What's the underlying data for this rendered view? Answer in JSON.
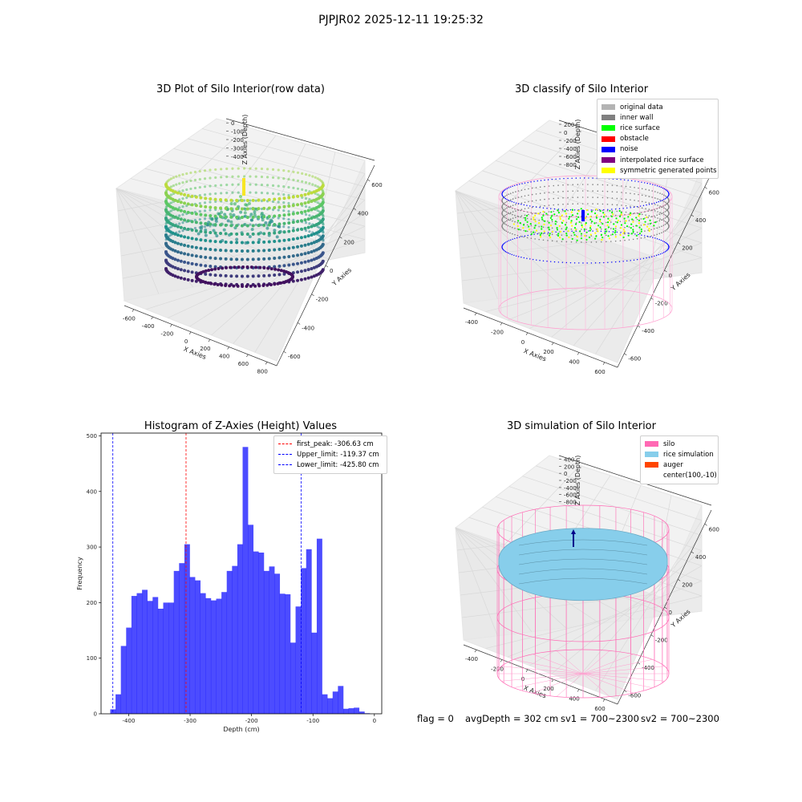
{
  "suptitle": "PJPJR02 2025-12-11 19:25:32",
  "panels": {
    "raw": {
      "title": "3D Plot of Silo Interior(row data)",
      "xlabel": "X Axies",
      "ylabel": "Y Axies",
      "zlabel": "Z Axies (Depth)",
      "xticks": [
        "-600",
        "-400",
        "-200",
        "0",
        "200",
        "400",
        "600",
        "800"
      ],
      "yticks": [
        "-600",
        "-400",
        "-200",
        "0",
        "200",
        "400",
        "600"
      ],
      "zticks": [
        "0",
        "-100",
        "-200",
        "-300",
        "-400"
      ]
    },
    "classify": {
      "title": "3D classify of Silo Interior",
      "xlabel": "X Axies",
      "ylabel": "Y Axies",
      "zlabel": "Z Axies (Depth)",
      "xticks": [
        "-400",
        "-200",
        "0",
        "200",
        "400",
        "600"
      ],
      "yticks": [
        "-600",
        "-400",
        "-200",
        "0",
        "200",
        "400",
        "600"
      ],
      "zticks": [
        "200",
        "0",
        "-200",
        "-400",
        "-600",
        "-800"
      ],
      "legend": [
        {
          "label": "original data",
          "color": "#b3b3b3"
        },
        {
          "label": "inner wall",
          "color": "#808080"
        },
        {
          "label": "rice surface",
          "color": "#00ff00"
        },
        {
          "label": "obstacle",
          "color": "#ff0000"
        },
        {
          "label": "noise",
          "color": "#0000ff"
        },
        {
          "label": "interpolated rice surface",
          "color": "#800080"
        },
        {
          "label": "symmetric generated points",
          "color": "#ffff00"
        }
      ]
    },
    "simulation": {
      "title": "3D simulation of Silo Interior",
      "xlabel": "X Axies",
      "ylabel": "Y Axies",
      "zlabel": "Z Axies (Depth)",
      "xticks": [
        "-400",
        "-200",
        "0",
        "200",
        "400",
        "600"
      ],
      "yticks": [
        "-600",
        "-400",
        "-200",
        "0",
        "200",
        "400",
        "600"
      ],
      "zticks": [
        "400",
        "200",
        "0",
        "-200",
        "-400",
        "-600",
        "-800"
      ],
      "legend": [
        {
          "label": "silo",
          "color": "#ff69b4"
        },
        {
          "label": "rice simulation",
          "color": "#87ceeb"
        },
        {
          "label": "auger",
          "color": "#ff4500"
        },
        {
          "label": "center(100,-10)",
          "color": ""
        }
      ]
    }
  },
  "footer": {
    "flag": "flag = 0",
    "avg": "avgDepth = 302 cm",
    "sv1": "sv1 = 700~2300",
    "sv2": "sv2 = 700~2300"
  },
  "chart_data": {
    "type": "bar",
    "title": "Histogram of Z-Axies (Height) Values",
    "xlabel": "Depth (cm)",
    "ylabel": "Frequency",
    "xlim": [
      -445,
      12
    ],
    "ylim": [
      0,
      505
    ],
    "xticks": [
      -400,
      -300,
      -200,
      -100,
      0
    ],
    "yticks": [
      0,
      100,
      200,
      300,
      400,
      500
    ],
    "bin_start": -430,
    "bin_width": 8.62,
    "values": [
      8,
      35,
      122,
      155,
      212,
      217,
      223,
      203,
      210,
      189,
      200,
      200,
      257,
      271,
      305,
      246,
      240,
      217,
      208,
      204,
      207,
      219,
      257,
      266,
      305,
      480,
      340,
      292,
      290,
      257,
      265,
      252,
      216,
      215,
      128,
      193,
      262,
      296,
      146,
      315,
      35,
      28,
      40,
      50,
      9,
      10,
      11,
      4,
      1
    ],
    "bar_color": "#0000ff",
    "bar_opacity": 0.7,
    "reference_lines": [
      {
        "label": "first_peak: -306.63 cm",
        "x": -306.63,
        "color": "#ff0000"
      },
      {
        "label": "Upper_limit: -119.37 cm",
        "x": -119.37,
        "color": "#0000ff"
      },
      {
        "label": "Lower_limit: -425.80 cm",
        "x": -425.8,
        "color": "#0000ff"
      }
    ],
    "legend_position": "top-right"
  }
}
